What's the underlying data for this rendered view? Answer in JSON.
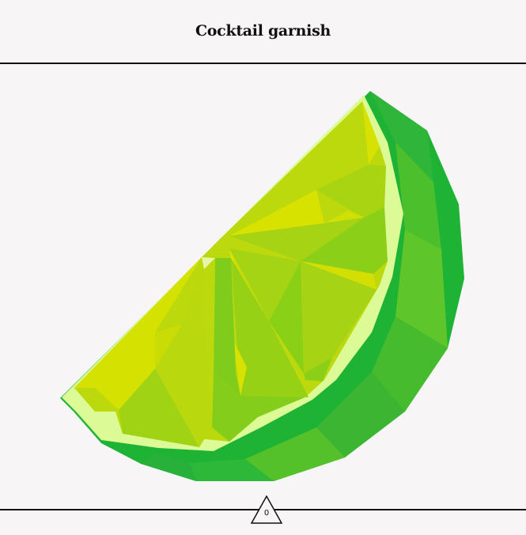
{
  "header": {
    "title": "Cocktail garnish"
  },
  "illustration": {
    "subject": "lime-wedge-icon",
    "colors": {
      "rind_dark": "#1fb336",
      "rind_mid": "#3dbb2e",
      "pith": "#dcfa96",
      "pulp_light": "#bcd90d",
      "pulp_yellow": "#d8e200",
      "pulp_green": "#83cc1b"
    }
  },
  "footer": {
    "counter_value": "0"
  }
}
